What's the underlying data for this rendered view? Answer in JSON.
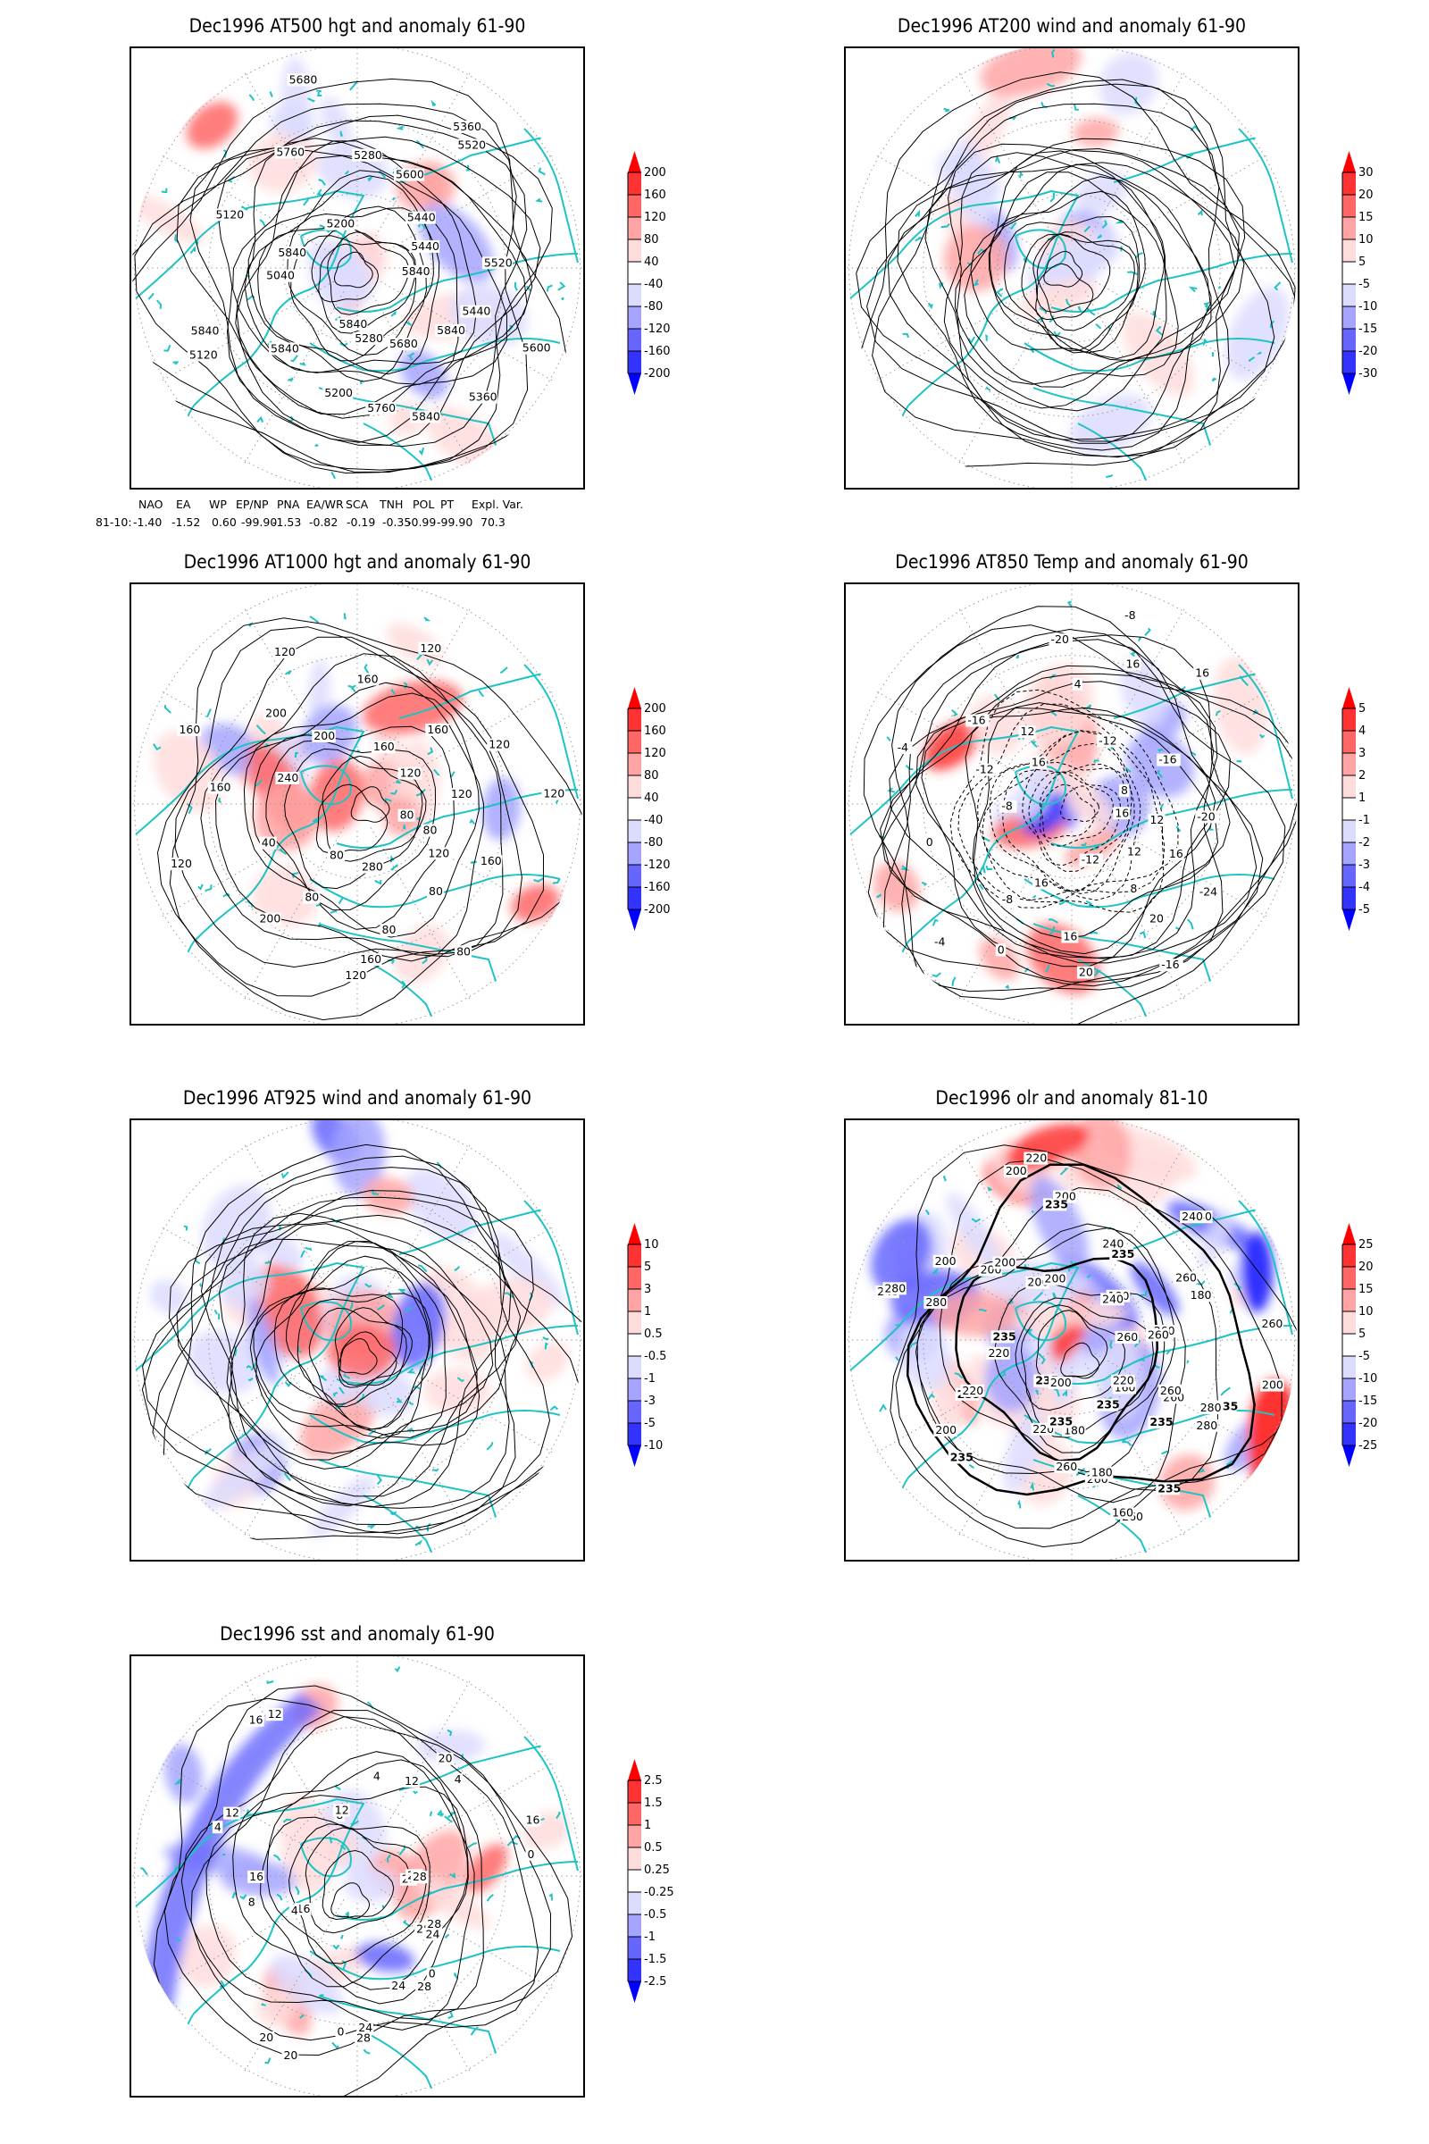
{
  "colors": {
    "coast": "#1fc3c3",
    "contour": "#000000",
    "grid": "#9a9a9a",
    "scale": [
      "#0000ff",
      "#3333ff",
      "#6666ff",
      "#a5a5ff",
      "#dcdcff",
      "#ffffff",
      "#ffdcdc",
      "#ffa5a5",
      "#ff6666",
      "#ff3333",
      "#ff0000"
    ]
  },
  "chart_data": [
    {
      "type": "heatmap",
      "id": "at500",
      "title": "Dec1996 AT500 hgt and anomaly 61-90",
      "colorbar_ticks": [
        "-200",
        "-160",
        "-120",
        "-80",
        "-40",
        "40",
        "80",
        "120",
        "160",
        "200"
      ],
      "contour_labels": [
        "5840",
        "5840",
        "5840",
        "5840",
        "5840",
        "5840",
        "5840",
        "5760",
        "5680",
        "5600",
        "5520",
        "5440",
        "5440",
        "5360",
        "5280",
        "5200",
        "5120",
        "5040",
        "5120",
        "5200",
        "5280",
        "5360",
        "5440",
        "5520",
        "5600",
        "5680",
        "5760"
      ],
      "anomaly_blobs": [
        {
          "region": "north-atlantic",
          "level": 2
        },
        {
          "region": "arctic-canada",
          "level": -2
        },
        {
          "region": "pacific",
          "level": -3
        },
        {
          "region": "siberia",
          "level": -1
        },
        {
          "region": "europe",
          "level": 1
        }
      ]
    },
    {
      "type": "heatmap",
      "id": "at200",
      "title": "Dec1996 AT200 wind and anomaly 61-90",
      "colorbar_ticks": [
        "-30",
        "-20",
        "-15",
        "-10",
        "-5",
        "5",
        "10",
        "15",
        "20",
        "30"
      ],
      "contour_labels": []
    },
    {
      "type": "heatmap",
      "id": "at1000",
      "title": "Dec1996 AT1000 hgt and anomaly 61-90",
      "colorbar_ticks": [
        "-200",
        "-160",
        "-120",
        "-80",
        "-40",
        "40",
        "80",
        "120",
        "160",
        "200"
      ],
      "contour_labels": [
        "80",
        "120",
        "80",
        "120",
        "80",
        "40",
        "160",
        "160",
        "200",
        "160",
        "120",
        "120",
        "120",
        "160",
        "80",
        "280",
        "80",
        "200",
        "120",
        "240",
        "200",
        "120",
        "160",
        "160",
        "120",
        "120",
        "80",
        "80",
        "160"
      ]
    },
    {
      "type": "heatmap",
      "id": "at850",
      "title": "Dec1996 AT850 Temp and anomaly 61-90",
      "colorbar_ticks": [
        "-5",
        "-4",
        "-3",
        "-2",
        "-1",
        "1",
        "2",
        "3",
        "4",
        "5"
      ],
      "contour_labels": [
        "16",
        "12",
        "8",
        "16",
        "0",
        "-4",
        "-8",
        "-12",
        "-16",
        "-20",
        "-8",
        "-12",
        "-16",
        "-20",
        "-24",
        "-16",
        "-12",
        "16",
        "-8",
        "0",
        "-4",
        "16",
        "12",
        "4",
        "16",
        "16",
        "8",
        "12",
        "16",
        "20",
        "20"
      ]
    },
    {
      "type": "heatmap",
      "id": "at925",
      "title": "Dec1996 AT925 wind and anomaly 61-90",
      "colorbar_ticks": [
        "-10",
        "-5",
        "-3",
        "-1",
        "-0.5",
        "0.5",
        "1",
        "3",
        "5",
        "10"
      ],
      "contour_labels": []
    },
    {
      "type": "heatmap",
      "id": "olr",
      "title": "Dec1996 olr and anomaly 81-10",
      "colorbar_ticks": [
        "-25",
        "-20",
        "-15",
        "-10",
        "-5",
        "5",
        "10",
        "15",
        "20",
        "25"
      ],
      "contour_labels": [
        "260",
        "235",
        "235",
        "235",
        "260",
        "260",
        "220",
        "235",
        "235",
        "235",
        "220",
        "240",
        "200",
        "200",
        "200",
        "220",
        "200",
        "240",
        "180",
        "240",
        "180",
        "260",
        "200",
        "280",
        "260",
        "160",
        "160",
        "180",
        "180",
        "200",
        "200",
        "220",
        "235",
        "280",
        "280",
        "200",
        "200",
        "200",
        "235",
        "235",
        "240",
        "240",
        "260",
        "260",
        "260",
        "280",
        "260",
        "220",
        "235",
        "260",
        "235"
      ]
    },
    {
      "type": "heatmap",
      "id": "sst",
      "title": "Dec1996 sst and anomaly 61-90",
      "colorbar_ticks": [
        "-2.5",
        "-1.5",
        "-1",
        "-0.5",
        "-0.25",
        "0.25",
        "0.5",
        "1",
        "1.5",
        "2.5"
      ],
      "contour_labels": [
        "28",
        "28",
        "24",
        "24",
        "20",
        "16",
        "16",
        "12",
        "12",
        "8",
        "4",
        "4",
        "0",
        "24",
        "28",
        "0",
        "0",
        "20",
        "4",
        "8",
        "4",
        "16",
        "12",
        "12",
        "20",
        "16",
        "28",
        "24",
        "28",
        "28"
      ]
    }
  ],
  "indices": {
    "headers": [
      "NAO",
      "EA",
      "WP",
      "EP/NP",
      "PNA",
      "EA/WR",
      "SCA",
      "TNH",
      "POL",
      "PT",
      "Expl. Var."
    ],
    "row_label": "81-10:",
    "values": [
      "-1.40",
      "-1.52",
      "0.60",
      "-99.90",
      "-1.53",
      "-0.82",
      "-0.19",
      "-0.35",
      "-0.99",
      "-99.90",
      "70.3"
    ]
  }
}
